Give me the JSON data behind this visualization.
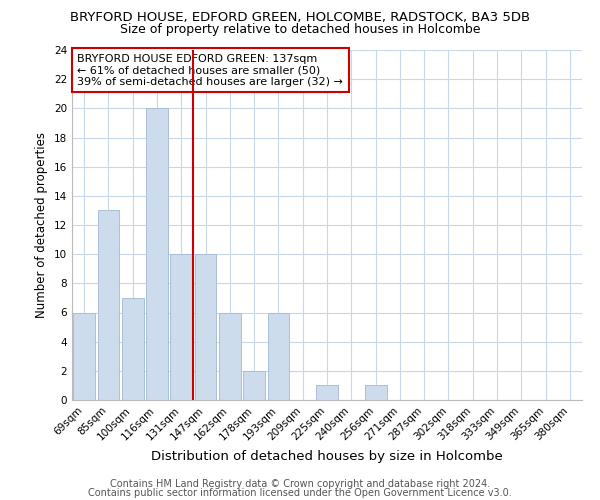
{
  "title": "BRYFORD HOUSE, EDFORD GREEN, HOLCOMBE, RADSTOCK, BA3 5DB",
  "subtitle": "Size of property relative to detached houses in Holcombe",
  "xlabel": "Distribution of detached houses by size in Holcombe",
  "ylabel": "Number of detached properties",
  "categories": [
    "69sqm",
    "85sqm",
    "100sqm",
    "116sqm",
    "131sqm",
    "147sqm",
    "162sqm",
    "178sqm",
    "193sqm",
    "209sqm",
    "225sqm",
    "240sqm",
    "256sqm",
    "271sqm",
    "287sqm",
    "302sqm",
    "318sqm",
    "333sqm",
    "349sqm",
    "365sqm",
    "380sqm"
  ],
  "values": [
    6,
    13,
    7,
    20,
    10,
    10,
    6,
    2,
    6,
    0,
    1,
    0,
    1,
    0,
    0,
    0,
    0,
    0,
    0,
    0,
    0
  ],
  "bar_color": "#ccdcec",
  "bar_edge_color": "#aac0d8",
  "vline_x": 4.5,
  "vline_color": "#cc0000",
  "annotation_text": "BRYFORD HOUSE EDFORD GREEN: 137sqm\n← 61% of detached houses are smaller (50)\n39% of semi-detached houses are larger (32) →",
  "annotation_box_color": "#ffffff",
  "annotation_box_edge_color": "#cc0000",
  "ylim": [
    0,
    24
  ],
  "yticks": [
    0,
    2,
    4,
    6,
    8,
    10,
    12,
    14,
    16,
    18,
    20,
    22,
    24
  ],
  "footer1": "Contains HM Land Registry data © Crown copyright and database right 2024.",
  "footer2": "Contains public sector information licensed under the Open Government Licence v3.0.",
  "bg_color": "#ffffff",
  "grid_color": "#c8d8e8",
  "title_fontsize": 9.5,
  "subtitle_fontsize": 9.0,
  "tick_fontsize": 7.5,
  "ylabel_fontsize": 8.5,
  "xlabel_fontsize": 9.5,
  "footer_fontsize": 7.0,
  "annot_fontsize": 8.0
}
